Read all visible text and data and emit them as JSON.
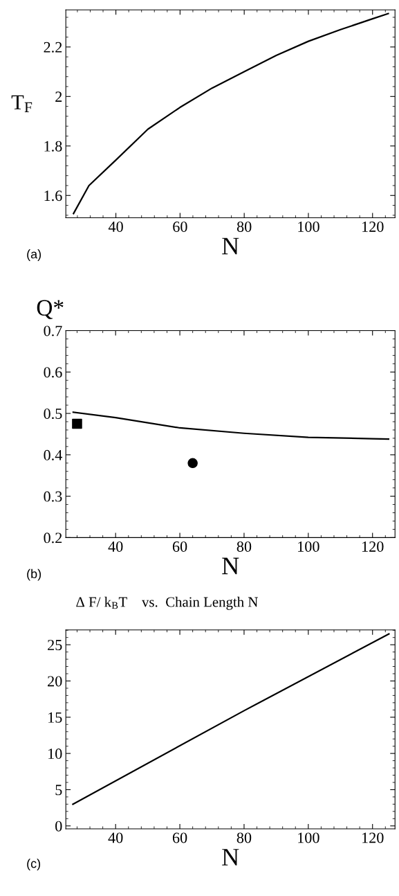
{
  "chart_data": [
    {
      "type": "line",
      "ylabel": "T$_{F}$",
      "xlabel": "N",
      "annotations": [
        "(a)"
      ],
      "xlim": [
        24.4,
        127
      ],
      "ylim": [
        1.51,
        2.35
      ],
      "xticks": [
        40,
        60,
        80,
        100,
        120
      ],
      "yticks": [
        1.6,
        1.8,
        2,
        2.2
      ],
      "grid": false,
      "legend": false,
      "series": [
        {
          "color": "#000000",
          "x": [
            26.8,
            31.6,
            40,
            50,
            60,
            70,
            80,
            90,
            100,
            110,
            120,
            124.9
          ],
          "values": [
            1.527,
            1.64,
            1.743,
            1.868,
            1.956,
            2.034,
            2.1,
            2.166,
            2.223,
            2.27,
            2.314,
            2.335
          ]
        }
      ]
    },
    {
      "type": "line",
      "ylabel": "Q*",
      "xlabel": "N",
      "annotations": [
        "(b)"
      ],
      "xlim": [
        24.5,
        127
      ],
      "ylim": [
        0.2,
        0.7
      ],
      "xticks": [
        40,
        60,
        80,
        100,
        120
      ],
      "yticks": [
        0.2,
        0.3,
        0.4,
        0.5,
        0.6,
        0.7
      ],
      "grid": false,
      "legend": false,
      "series": [
        {
          "color": "#000000",
          "x": [
            26.8,
            40,
            60,
            80,
            100,
            120,
            125
          ],
          "values": [
            0.503,
            0.49,
            0.465,
            0.452,
            0.442,
            0.439,
            0.438
          ]
        },
        {
          "type": "scatter",
          "marker": "square",
          "color": "#000000",
          "x": [
            28
          ],
          "values": [
            0.475
          ]
        },
        {
          "type": "scatter",
          "marker": "circle",
          "color": "#000000",
          "x": [
            64
          ],
          "values": [
            0.38
          ]
        }
      ]
    },
    {
      "type": "line",
      "title": "Δ F/ k$_{B}$T    vs.  Chain Length N",
      "xlabel": "N",
      "annotations": [
        "(c)"
      ],
      "xlim": [
        24.5,
        127
      ],
      "ylim": [
        -0.4,
        27.05
      ],
      "xticks": [
        40,
        60,
        80,
        100,
        120
      ],
      "yticks": [
        0,
        5,
        10,
        15,
        20,
        25
      ],
      "grid": false,
      "legend": false,
      "series": [
        {
          "color": "#000000",
          "x": [
            26.7,
            80,
            125.1
          ],
          "values": [
            3.0,
            15.9,
            26.5
          ]
        }
      ]
    }
  ]
}
